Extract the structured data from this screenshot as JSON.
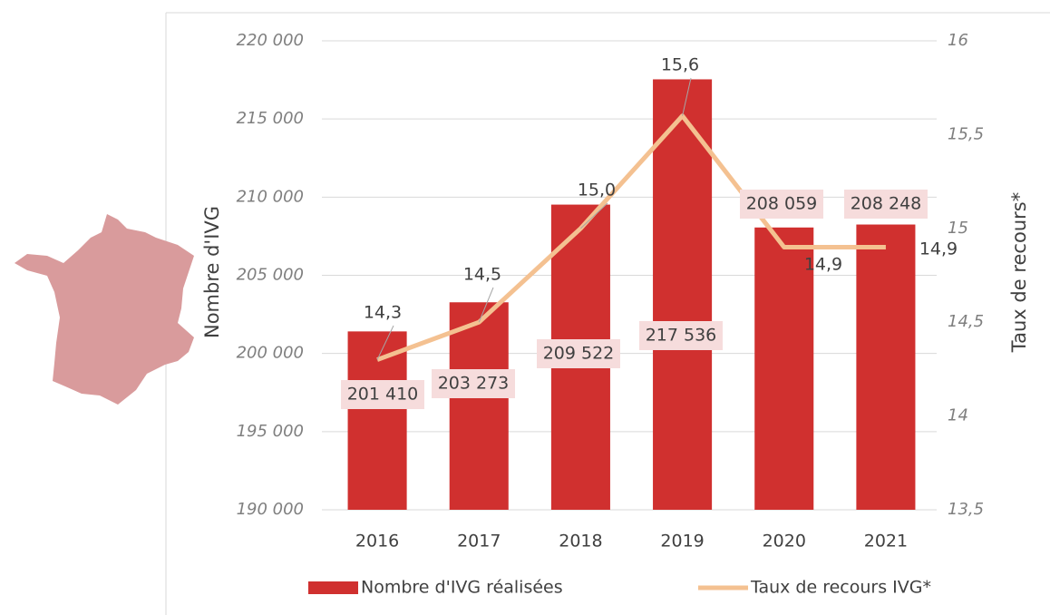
{
  "chart_data": {
    "type": "bar",
    "categories": [
      "2016",
      "2017",
      "2018",
      "2019",
      "2020",
      "2021"
    ],
    "series": [
      {
        "name": "Nombre d'IVG réalisées",
        "color": "#d0302f",
        "values": [
          201410,
          203273,
          209522,
          217536,
          208059,
          208248
        ],
        "value_labels": [
          "201 410",
          "203 273",
          "209 522",
          "217 536",
          "208 059",
          "208 248"
        ]
      },
      {
        "name": "Taux de recours IVG*",
        "type": "line",
        "axis": "y2",
        "color": "#f4c191",
        "values": [
          14.3,
          14.5,
          15.0,
          15.6,
          14.9,
          14.9
        ],
        "value_labels": [
          "14,3",
          "14,5",
          "15,0",
          "15,6",
          "14,9",
          "14,9"
        ]
      }
    ],
    "ylabel": "Nombre d'IVG",
    "y2label": "Taux de recours*",
    "ylim": [
      190000,
      220000
    ],
    "yticks": [
      {
        "value": 190000,
        "label": "190 000"
      },
      {
        "value": 195000,
        "label": "195 000"
      },
      {
        "value": 200000,
        "label": "200 000"
      },
      {
        "value": 205000,
        "label": "205 000"
      },
      {
        "value": 210000,
        "label": "210 000"
      },
      {
        "value": 215000,
        "label": "215 000"
      },
      {
        "value": 220000,
        "label": "220 000"
      }
    ],
    "y2lim": [
      13.5,
      16
    ],
    "y2ticks": [
      {
        "value": 13.5,
        "label": "13,5"
      },
      14,
      {
        "value": 14.5,
        "label": "14,5"
      },
      15,
      {
        "value": 15.5,
        "label": "15,5"
      },
      16
    ],
    "grid": true
  }
}
